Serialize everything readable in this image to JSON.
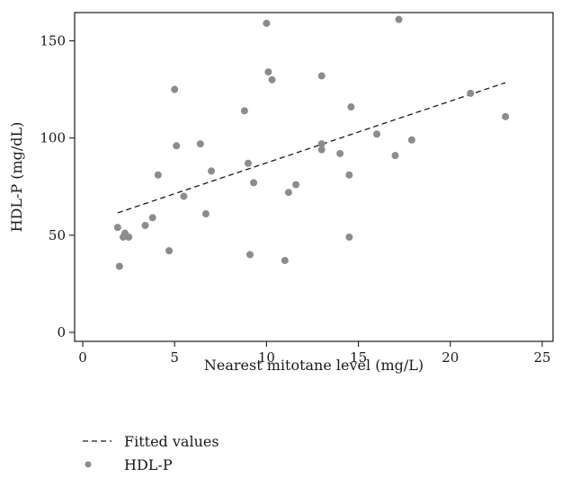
{
  "chart_data": {
    "type": "scatter",
    "xlabel": "Nearest mitotane level (mg/L)",
    "ylabel": "HDL-P (mg/dL)",
    "xlim": [
      0,
      25
    ],
    "ylim": [
      0,
      165
    ],
    "xticks": [
      0,
      5,
      10,
      15,
      20,
      25
    ],
    "yticks": [
      0,
      50,
      100,
      150
    ],
    "grid": false,
    "legend_position": "bottom",
    "series": [
      {
        "name": "HDL-P",
        "kind": "scatter",
        "color": "#8c8c8c",
        "points": [
          [
            1.9,
            54
          ],
          [
            2.0,
            34
          ],
          [
            2.2,
            49
          ],
          [
            2.3,
            51
          ],
          [
            2.5,
            49
          ],
          [
            3.4,
            55
          ],
          [
            3.8,
            59
          ],
          [
            4.1,
            81
          ],
          [
            4.7,
            42
          ],
          [
            5.0,
            125
          ],
          [
            5.1,
            96
          ],
          [
            5.5,
            70
          ],
          [
            6.4,
            97
          ],
          [
            6.7,
            61
          ],
          [
            7.0,
            83
          ],
          [
            8.8,
            114
          ],
          [
            9.0,
            87
          ],
          [
            9.1,
            40
          ],
          [
            9.3,
            77
          ],
          [
            10.0,
            159
          ],
          [
            10.1,
            134
          ],
          [
            10.3,
            130
          ],
          [
            11.0,
            37
          ],
          [
            11.2,
            72
          ],
          [
            11.6,
            76
          ],
          [
            13.0,
            132
          ],
          [
            13.0,
            97
          ],
          [
            13.0,
            94
          ],
          [
            14.0,
            92
          ],
          [
            14.5,
            81
          ],
          [
            14.5,
            49
          ],
          [
            14.6,
            116
          ],
          [
            16.0,
            102
          ],
          [
            17.0,
            91
          ],
          [
            17.2,
            161
          ],
          [
            17.9,
            99
          ],
          [
            21.1,
            123
          ],
          [
            23.0,
            111
          ]
        ]
      },
      {
        "name": "Fitted values",
        "kind": "line",
        "style": "dashed",
        "color": "#1a1a1a",
        "points": [
          [
            1.9,
            61.5
          ],
          [
            23.0,
            128.5
          ]
        ]
      }
    ]
  },
  "legend": {
    "fitted_label": "Fitted values",
    "points_label": "HDL-P"
  }
}
